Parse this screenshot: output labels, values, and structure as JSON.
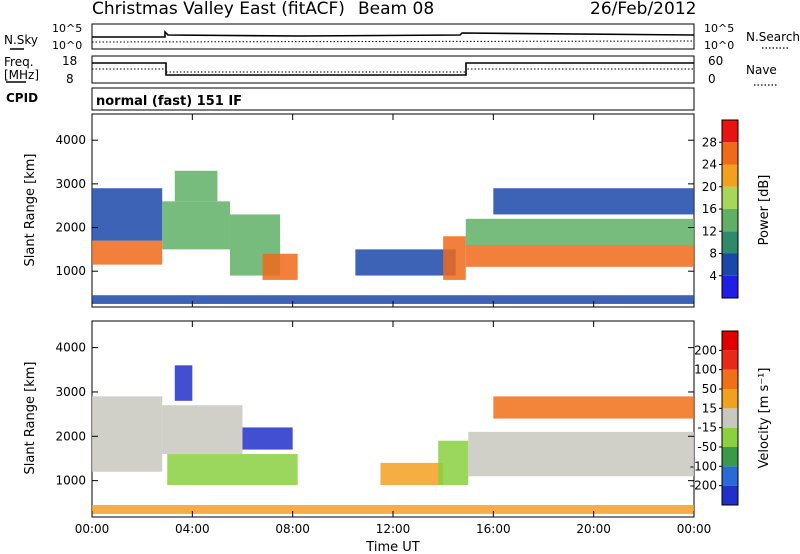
{
  "header": {
    "station": "Christmas Valley East (fitACF)",
    "beam": "Beam 08",
    "date": "26/Feb/2012"
  },
  "nsky_panel": {
    "left_label": "N.Sky",
    "left_ticks": [
      "10^5",
      "10^0"
    ],
    "right_ticks": [
      "10^5",
      "10^0"
    ],
    "right_label": "N.Search"
  },
  "freq_panel": {
    "left_label_1": "Freq.",
    "left_label_2": "[MHz]",
    "left_ticks": [
      "18",
      "8"
    ],
    "right_ticks": [
      "60",
      "0"
    ],
    "right_label": "Nave"
  },
  "cpid": {
    "label": "CPID",
    "value": "normal (fast) 151 IF"
  },
  "chart_data": [
    {
      "type": "heatmap",
      "title": "",
      "xlabel": "Time UT",
      "ylabel": "Slant Range [km]",
      "x_ticks": [
        "00:00",
        "04:00",
        "08:00",
        "12:00",
        "16:00",
        "20:00",
        "00:00"
      ],
      "y_ticks": [
        "1000",
        "2000",
        "3000",
        "4000"
      ],
      "xlim_hours": [
        0,
        24
      ],
      "ylim_km": [
        180,
        4600
      ],
      "colorbar": {
        "label": "Power [dB]",
        "ticks": [
          "4",
          "8",
          "12",
          "16",
          "20",
          "24",
          "28"
        ],
        "colors": [
          "#1e1ee6",
          "#1a48a8",
          "#2e8a6a",
          "#5fb066",
          "#a6d65a",
          "#f2a020",
          "#f06a1a",
          "#e81414"
        ]
      },
      "bands": [
        {
          "start_h": 0.0,
          "end_h": 2.8,
          "range_km": [
            1150,
            1700
          ],
          "level": "high"
        },
        {
          "start_h": 0.0,
          "end_h": 2.8,
          "range_km": [
            1700,
            2900
          ],
          "level": "low"
        },
        {
          "start_h": 2.8,
          "end_h": 5.5,
          "range_km": [
            1500,
            2600
          ],
          "level": "medium"
        },
        {
          "start_h": 3.3,
          "end_h": 5.0,
          "range_km": [
            2600,
            3300
          ],
          "level": "medium"
        },
        {
          "start_h": 5.5,
          "end_h": 7.5,
          "range_km": [
            900,
            2300
          ],
          "level": "medium"
        },
        {
          "start_h": 6.8,
          "end_h": 8.2,
          "range_km": [
            800,
            1400
          ],
          "level": "high"
        },
        {
          "start_h": 10.5,
          "end_h": 14.5,
          "range_km": [
            900,
            1500
          ],
          "level": "low"
        },
        {
          "start_h": 14.0,
          "end_h": 14.9,
          "range_km": [
            800,
            1800
          ],
          "level": "high"
        },
        {
          "start_h": 14.9,
          "end_h": 24.0,
          "range_km": [
            1100,
            1600
          ],
          "level": "high"
        },
        {
          "start_h": 14.9,
          "end_h": 24.0,
          "range_km": [
            1600,
            2200
          ],
          "level": "medium"
        },
        {
          "start_h": 16.0,
          "end_h": 24.0,
          "range_km": [
            2300,
            2900
          ],
          "level": "low"
        },
        {
          "start_h": 0.0,
          "end_h": 24.0,
          "range_km": [
            250,
            450
          ],
          "level": "low"
        }
      ]
    },
    {
      "type": "heatmap",
      "title": "",
      "xlabel": "Time UT",
      "ylabel": "Slant Range [km]",
      "x_ticks": [
        "00:00",
        "04:00",
        "08:00",
        "12:00",
        "16:00",
        "20:00",
        "00:00"
      ],
      "y_ticks": [
        "1000",
        "2000",
        "3000",
        "4000"
      ],
      "xlim_hours": [
        0,
        24
      ],
      "ylim_km": [
        180,
        4600
      ],
      "colorbar": {
        "label": "Velocity [m s⁻¹]",
        "ticks": [
          "200",
          "100",
          "50",
          "15",
          "-15",
          "-50",
          "-100",
          "-200"
        ],
        "colors": [
          "#2030c8",
          "#2a6ad8",
          "#3a9a4a",
          "#8ad040",
          "#c8c8c0",
          "#f2a020",
          "#f07018",
          "#e82818",
          "#e00000"
        ]
      },
      "bands": [
        {
          "start_h": 0.0,
          "end_h": 2.8,
          "range_km": [
            1200,
            2900
          ],
          "level": "ground"
        },
        {
          "start_h": 2.8,
          "end_h": 6.0,
          "range_km": [
            1600,
            2700
          ],
          "level": "ground"
        },
        {
          "start_h": 3.3,
          "end_h": 4.0,
          "range_km": [
            2800,
            3600
          ],
          "level": "toward_high"
        },
        {
          "start_h": 6.0,
          "end_h": 8.0,
          "range_km": [
            1700,
            2200
          ],
          "level": "toward_high"
        },
        {
          "start_h": 3.0,
          "end_h": 8.2,
          "range_km": [
            900,
            1600
          ],
          "level": "toward_low"
        },
        {
          "start_h": 11.5,
          "end_h": 14.0,
          "range_km": [
            900,
            1400
          ],
          "level": "away"
        },
        {
          "start_h": 13.8,
          "end_h": 15.0,
          "range_km": [
            900,
            1900
          ],
          "level": "toward_low"
        },
        {
          "start_h": 15.0,
          "end_h": 24.0,
          "range_km": [
            1100,
            2100
          ],
          "level": "ground"
        },
        {
          "start_h": 16.0,
          "end_h": 24.0,
          "range_km": [
            2400,
            2900
          ],
          "level": "mixed"
        },
        {
          "start_h": 0.0,
          "end_h": 24.0,
          "range_km": [
            250,
            450
          ],
          "level": "away"
        }
      ]
    }
  ]
}
